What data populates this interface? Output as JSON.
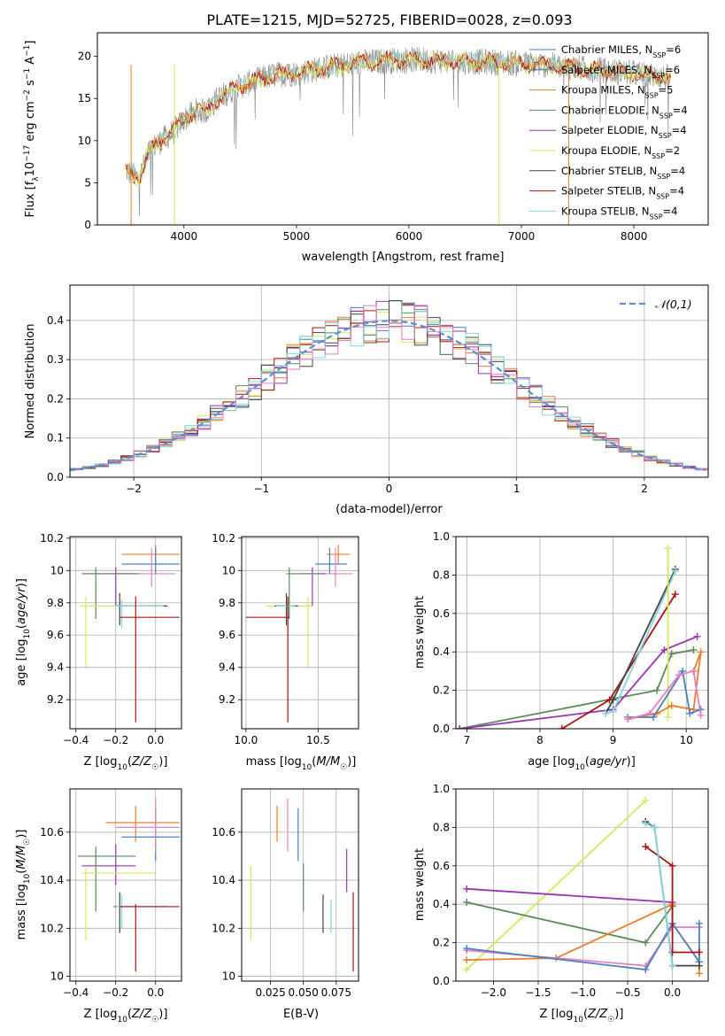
{
  "figure": {
    "title": "PLATE=1215, MJD=52725, FIBERID=0028, z=0.093"
  },
  "chart_data": [
    {
      "panel": "spectrum",
      "type": "line",
      "title": "PLATE=1215, MJD=52725, FIBERID=0028, z=0.093",
      "xlabel": "wavelength [Angstrom, rest frame]",
      "ylabel": "Flux [f_λ 10^-17 erg cm^-2 s^-1 A^-1]",
      "xlim": [
        3230,
        8660
      ],
      "ylim": [
        0,
        22.8
      ],
      "xticks": [
        4000,
        5000,
        6000,
        7000,
        8000
      ],
      "yticks": [
        0,
        5,
        10,
        15,
        20
      ],
      "grid": false,
      "legend_position": "top-right",
      "legend": [
        {
          "text": "Chabrier MILES, N",
          "sub": "SSP",
          "val": "=6",
          "color": "#4a7fc1"
        },
        {
          "text": "Salpeter MILES, N",
          "sub": "SSP",
          "val": "=6",
          "color": "#4a7fc1"
        },
        {
          "text": "Kroupa MILES, N",
          "sub": "SSP",
          "val": "=5",
          "color": "#ee7d24"
        },
        {
          "text": "Chabrier ELODIE, N",
          "sub": "SSP",
          "val": "=4",
          "color": "#5a8a5a"
        },
        {
          "text": "Salpeter ELODIE, N",
          "sub": "SSP",
          "val": "=4",
          "color": "#9b33b5"
        },
        {
          "text": "Kroupa ELODIE, N",
          "sub": "SSP",
          "val": "=2",
          "color": "#d4e85a"
        },
        {
          "text": "Chabrier STELIB, N",
          "sub": "SSP",
          "val": "=4",
          "color": "#444444"
        },
        {
          "text": "Salpeter STELIB, N",
          "sub": "SSP",
          "val": "=4",
          "color": "#b01010"
        },
        {
          "text": "Kroupa STELIB, N",
          "sub": "SSP",
          "val": "=4",
          "color": "#7fd6dc"
        }
      ],
      "continuum": {
        "x": [
          3480,
          3600,
          3700,
          3800,
          3900,
          4000,
          4100,
          4200,
          4300,
          4500,
          4800,
          5000,
          5300,
          5600,
          6000,
          6400,
          6800,
          7200,
          7600,
          8000,
          8300
        ],
        "y": [
          6.5,
          5.5,
          9.0,
          10.0,
          11.0,
          12.5,
          13.5,
          13.5,
          15.0,
          16.5,
          17.8,
          18.0,
          18.8,
          19.3,
          19.6,
          19.4,
          19.3,
          19.0,
          18.5,
          18.0,
          17.5
        ]
      },
      "observed_color": "#888888",
      "model_colors": [
        "#7fd6dc",
        "#ee7d24",
        "#b01010",
        "#d4e85a"
      ]
    },
    {
      "panel": "residuals",
      "type": "histogram",
      "xlabel": "(data-model)/error",
      "ylabel": "Normed distribution",
      "xlim": [
        -2.5,
        2.5
      ],
      "ylim": [
        0,
        0.49
      ],
      "xticks": [
        -2,
        -1,
        0,
        1,
        2
      ],
      "xtick_labels": [
        "−2",
        "−1",
        "0",
        "1",
        "2"
      ],
      "yticks": [
        0.0,
        0.1,
        0.2,
        0.3,
        0.4
      ],
      "grid": true,
      "legend": "𝒩(0,1)",
      "legend_position": "top-right",
      "gaussian_color": "#5a8fd6",
      "series_colors": [
        "#4a7fc1",
        "#ee7d24",
        "#5a8a5a",
        "#9b33b5",
        "#d4e85a",
        "#444444",
        "#b01010",
        "#7fd6dc",
        "#e67fc3"
      ]
    },
    {
      "panel": "age-vs-Z",
      "type": "errorbar",
      "xlabel": "Z [log10(Z/Z☉)]",
      "ylabel": "age [log10(age/yr)]",
      "xlim": [
        -0.43,
        0.13
      ],
      "ylim": [
        9.02,
        10.21
      ],
      "xticks": [
        -0.4,
        -0.2,
        0.0
      ],
      "xtick_labels": [
        "−0.4",
        "−0.2",
        "0.0"
      ],
      "yticks": [
        9.2,
        9.4,
        9.6,
        9.8,
        10.0,
        10.2
      ],
      "grid": true,
      "points": [
        {
          "x": 0.0,
          "xlo": -0.17,
          "xhi": 0.12,
          "y": 10.1,
          "ylo": 10.04,
          "yhi": 10.16,
          "color": "#ee7d24"
        },
        {
          "x": 0.0,
          "xlo": -0.17,
          "xhi": 0.12,
          "y": 10.04,
          "ylo": 9.98,
          "yhi": 10.14,
          "color": "#4a7fc1"
        },
        {
          "x": -0.02,
          "xlo": -0.2,
          "xhi": 0.1,
          "y": 9.98,
          "ylo": 9.9,
          "yhi": 10.14,
          "color": "#e67fc3"
        },
        {
          "x": -0.2,
          "xlo": -0.37,
          "xhi": -0.1,
          "y": 9.98,
          "ylo": 9.78,
          "yhi": 10.02,
          "color": "#9b33b5"
        },
        {
          "x": -0.3,
          "xlo": -0.37,
          "xhi": -0.08,
          "y": 9.98,
          "ylo": 9.7,
          "yhi": 10.02,
          "color": "#5a8a5a"
        },
        {
          "x": -0.35,
          "xlo": -0.38,
          "xhi": -0.15,
          "y": 9.78,
          "ylo": 9.4,
          "yhi": 9.84,
          "color": "#d4e85a"
        },
        {
          "x": -0.18,
          "xlo": -0.2,
          "xhi": 0.06,
          "y": 9.78,
          "ylo": 9.66,
          "yhi": 9.86,
          "color": "#444444"
        },
        {
          "x": -0.17,
          "xlo": -0.2,
          "xhi": 0.04,
          "y": 9.78,
          "ylo": 9.64,
          "yhi": 9.82,
          "color": "#7fd6dc"
        },
        {
          "x": -0.1,
          "xlo": -0.18,
          "xhi": 0.12,
          "y": 9.71,
          "ylo": 9.06,
          "yhi": 9.84,
          "color": "#b01010"
        }
      ]
    },
    {
      "panel": "age-vs-mass",
      "type": "errorbar",
      "xlabel": "mass [log10(M/M☉)]",
      "xlim": [
        9.97,
        10.78
      ],
      "ylim": [
        9.02,
        10.21
      ],
      "xticks": [
        10.0,
        10.5
      ],
      "xtick_labels": [
        "10.0",
        "10.5"
      ],
      "yticks": [
        9.2,
        9.4,
        9.6,
        9.8,
        10.0,
        10.2
      ],
      "grid": true,
      "points": [
        {
          "x": 10.64,
          "xlo": 10.56,
          "xhi": 10.72,
          "y": 10.1,
          "ylo": 10.04,
          "yhi": 10.16,
          "color": "#ee7d24"
        },
        {
          "x": 10.58,
          "xlo": 10.48,
          "xhi": 10.7,
          "y": 10.04,
          "ylo": 9.98,
          "yhi": 10.14,
          "color": "#4a7fc1"
        },
        {
          "x": 10.62,
          "xlo": 10.52,
          "xhi": 10.74,
          "y": 9.98,
          "ylo": 9.9,
          "yhi": 10.14,
          "color": "#e67fc3"
        },
        {
          "x": 10.46,
          "xlo": 10.38,
          "xhi": 10.55,
          "y": 9.98,
          "ylo": 9.78,
          "yhi": 10.02,
          "color": "#9b33b5"
        },
        {
          "x": 10.3,
          "xlo": 10.28,
          "xhi": 10.5,
          "y": 9.98,
          "ylo": 9.7,
          "yhi": 10.02,
          "color": "#5a8a5a"
        },
        {
          "x": 10.43,
          "xlo": 10.14,
          "xhi": 10.46,
          "y": 9.78,
          "ylo": 9.4,
          "yhi": 9.84,
          "color": "#d4e85a"
        },
        {
          "x": 10.28,
          "xlo": 10.2,
          "xhi": 10.36,
          "y": 9.78,
          "ylo": 9.66,
          "yhi": 9.86,
          "color": "#444444"
        },
        {
          "x": 10.29,
          "xlo": 10.21,
          "xhi": 10.34,
          "y": 9.78,
          "ylo": 9.64,
          "yhi": 9.82,
          "color": "#7fd6dc"
        },
        {
          "x": 10.29,
          "xlo": 10.0,
          "xhi": 10.3,
          "y": 9.71,
          "ylo": 9.06,
          "yhi": 9.84,
          "color": "#b01010"
        }
      ]
    },
    {
      "panel": "weight-vs-age",
      "type": "line",
      "xlabel": "age [log10(age/yr)]",
      "ylabel": "mass weight",
      "xlim": [
        6.85,
        10.3
      ],
      "ylim": [
        0,
        1.0
      ],
      "xticks": [
        7,
        8,
        9,
        10
      ],
      "yticks": [
        0.0,
        0.2,
        0.4,
        0.6,
        0.8,
        1.0
      ],
      "grid": true,
      "series": [
        {
          "color": "#5a8a5a",
          "x": [
            6.9,
            9.6,
            9.8,
            10.1
          ],
          "y": [
            0.0,
            0.2,
            0.39,
            0.41
          ]
        },
        {
          "color": "#9b33b5",
          "x": [
            6.9,
            9.0,
            9.7,
            10.15
          ],
          "y": [
            0.0,
            0.1,
            0.41,
            0.48
          ]
        },
        {
          "color": "#b01010",
          "x": [
            8.3,
            8.95,
            9.85
          ],
          "y": [
            0.0,
            0.15,
            0.7
          ]
        },
        {
          "color": "#444444",
          "x": [
            8.9,
            9.0,
            9.85
          ],
          "y": [
            0.08,
            0.15,
            0.83
          ]
        },
        {
          "color": "#7fd6dc",
          "x": [
            8.9,
            9.0,
            9.85
          ],
          "y": [
            0.08,
            0.09,
            0.82
          ]
        },
        {
          "color": "#d4e85a",
          "x": [
            9.75,
            9.75
          ],
          "y": [
            0.06,
            0.94
          ]
        },
        {
          "color": "#ee7d24",
          "x": [
            9.2,
            9.6,
            9.8,
            10.1,
            10.2,
            10.1
          ],
          "y": [
            0.05,
            0.08,
            0.12,
            0.1,
            0.4,
            0.3
          ]
        },
        {
          "color": "#4a7fc1",
          "x": [
            9.2,
            9.55,
            9.95,
            10.05,
            10.2
          ],
          "y": [
            0.06,
            0.06,
            0.3,
            0.08,
            0.1
          ]
        },
        {
          "color": "#e67fc3",
          "x": [
            9.2,
            9.5,
            9.9,
            10.1,
            10.2
          ],
          "y": [
            0.05,
            0.08,
            0.28,
            0.3,
            0.07
          ]
        }
      ]
    },
    {
      "panel": "mass-vs-Z",
      "type": "errorbar",
      "xlabel": "Z [log10(Z/Z☉)]",
      "ylabel": "mass [log10(M/M☉)]",
      "xlim": [
        -0.43,
        0.13
      ],
      "ylim": [
        9.98,
        10.78
      ],
      "xticks": [
        -0.4,
        -0.2,
        0.0
      ],
      "xtick_labels": [
        "−0.4",
        "−0.2",
        "0.0"
      ],
      "yticks": [
        10.0,
        10.2,
        10.4,
        10.6
      ],
      "grid": true,
      "points": [
        {
          "x": -0.1,
          "xlo": -0.25,
          "xhi": 0.12,
          "y": 10.64,
          "ylo": 10.56,
          "yhi": 10.71,
          "color": "#ee7d24"
        },
        {
          "x": 0.0,
          "xlo": -0.17,
          "xhi": 0.12,
          "y": 10.58,
          "ylo": 10.48,
          "yhi": 10.7,
          "color": "#4a7fc1"
        },
        {
          "x": 0.0,
          "xlo": -0.2,
          "xhi": 0.12,
          "y": 10.62,
          "ylo": 10.52,
          "yhi": 10.74,
          "color": "#e67fc3"
        },
        {
          "x": -0.2,
          "xlo": -0.37,
          "xhi": -0.1,
          "y": 10.46,
          "ylo": 10.38,
          "yhi": 10.55,
          "color": "#9b33b5"
        },
        {
          "x": -0.3,
          "xlo": -0.39,
          "xhi": -0.1,
          "y": 10.5,
          "ylo": 10.27,
          "yhi": 10.54,
          "color": "#5a8a5a"
        },
        {
          "x": -0.35,
          "xlo": -0.37,
          "xhi": 0.0,
          "y": 10.43,
          "ylo": 10.15,
          "yhi": 10.45,
          "color": "#d4e85a"
        },
        {
          "x": -0.18,
          "xlo": -0.21,
          "xhi": 0.06,
          "y": 10.29,
          "ylo": 10.18,
          "yhi": 10.35,
          "color": "#444444"
        },
        {
          "x": -0.17,
          "xlo": -0.2,
          "xhi": 0.04,
          "y": 10.29,
          "ylo": 10.2,
          "yhi": 10.34,
          "color": "#7fd6dc"
        },
        {
          "x": -0.1,
          "xlo": -0.18,
          "xhi": 0.12,
          "y": 10.29,
          "ylo": 10.02,
          "yhi": 10.3,
          "color": "#b01010"
        }
      ]
    },
    {
      "panel": "mass-vs-ebv",
      "type": "errorbar",
      "xlabel": "E(B-V)",
      "xlim": [
        0.003,
        0.092
      ],
      "ylim": [
        9.98,
        10.78
      ],
      "xticks": [
        0.025,
        0.05,
        0.075
      ],
      "xtick_labels": [
        "0.025",
        "0.050",
        "0.075"
      ],
      "yticks": [
        10.0,
        10.2,
        10.4,
        10.6
      ],
      "grid": true,
      "points": [
        {
          "x": 0.03,
          "ylo": 10.56,
          "yhi": 10.71,
          "color": "#ee7d24"
        },
        {
          "x": 0.046,
          "ylo": 10.48,
          "yhi": 10.7,
          "color": "#4a7fc1"
        },
        {
          "x": 0.038,
          "ylo": 10.52,
          "yhi": 10.74,
          "color": "#e67fc3"
        },
        {
          "x": 0.083,
          "ylo": 10.35,
          "yhi": 10.53,
          "color": "#9b33b5"
        },
        {
          "x": 0.05,
          "ylo": 10.27,
          "yhi": 10.47,
          "color": "#5a8a5a"
        },
        {
          "x": 0.01,
          "ylo": 10.15,
          "yhi": 10.46,
          "color": "#d4e85a"
        },
        {
          "x": 0.065,
          "ylo": 10.18,
          "yhi": 10.34,
          "color": "#444444"
        },
        {
          "x": 0.071,
          "ylo": 10.18,
          "yhi": 10.32,
          "color": "#7fd6dc"
        },
        {
          "x": 0.088,
          "ylo": 10.02,
          "yhi": 10.35,
          "color": "#b01010"
        }
      ]
    },
    {
      "panel": "weight-vs-Z",
      "type": "line",
      "xlabel": "Z [log10(Z/Z☉)]",
      "ylabel": "mass weight",
      "xlim": [
        -2.42,
        0.4
      ],
      "ylim": [
        0,
        1.0
      ],
      "xticks": [
        -2.0,
        -1.5,
        -1.0,
        -0.5,
        0.0
      ],
      "xtick_labels": [
        "−2.0",
        "−1.5",
        "−1.0",
        "−0.5",
        "0.0"
      ],
      "yticks": [
        0.0,
        0.2,
        0.4,
        0.6,
        0.8,
        1.0
      ],
      "grid": true,
      "series": [
        {
          "color": "#d4e85a",
          "x": [
            -2.3,
            -0.3
          ],
          "y": [
            0.06,
            0.94
          ]
        },
        {
          "color": "#9b33b5",
          "x": [
            -2.3,
            0.0
          ],
          "y": [
            0.48,
            0.41
          ]
        },
        {
          "color": "#5a8a5a",
          "x": [
            -2.3,
            -0.3,
            0.0,
            0.0
          ],
          "y": [
            0.41,
            0.2,
            0.39,
            0.39
          ]
        },
        {
          "color": "#ee7d24",
          "x": [
            -2.3,
            -1.3,
            0.0,
            0.0,
            0.3,
            0.3
          ],
          "y": [
            0.11,
            0.12,
            0.4,
            0.3,
            0.1,
            0.04
          ]
        },
        {
          "color": "#e67fc3",
          "x": [
            -2.3,
            -0.3,
            0.0,
            0.3
          ],
          "y": [
            0.16,
            0.08,
            0.28,
            0.28
          ]
        },
        {
          "color": "#4a7fc1",
          "x": [
            -2.3,
            -0.3,
            0.0,
            0.3,
            0.3
          ],
          "y": [
            0.17,
            0.06,
            0.3,
            0.1,
            0.3
          ]
        },
        {
          "color": "#b01010",
          "x": [
            -0.3,
            0.0,
            0.0,
            0.3
          ],
          "y": [
            0.7,
            0.6,
            0.15,
            0.15
          ]
        },
        {
          "color": "#444444",
          "x": [
            -0.3,
            -0.2,
            0.0,
            0.3
          ],
          "y": [
            0.83,
            0.8,
            0.08,
            0.08
          ]
        },
        {
          "color": "#7fd6dc",
          "x": [
            -0.3,
            -0.2,
            0.0
          ],
          "y": [
            0.82,
            0.8,
            0.08
          ]
        }
      ]
    }
  ]
}
